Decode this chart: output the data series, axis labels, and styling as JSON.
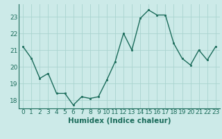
{
  "x": [
    0,
    1,
    2,
    3,
    4,
    5,
    6,
    7,
    8,
    9,
    10,
    11,
    12,
    13,
    14,
    15,
    16,
    17,
    18,
    19,
    20,
    21,
    22,
    23
  ],
  "y": [
    21.2,
    20.5,
    19.3,
    19.6,
    18.4,
    18.4,
    17.7,
    18.2,
    18.1,
    18.2,
    19.2,
    20.3,
    22.0,
    21.0,
    22.9,
    23.4,
    23.1,
    23.1,
    21.4,
    20.5,
    20.1,
    21.0,
    20.4,
    21.2
  ],
  "xlabel": "Humidex (Indice chaleur)",
  "ylim": [
    17.5,
    23.75
  ],
  "xlim": [
    -0.5,
    23.5
  ],
  "yticks": [
    18,
    19,
    20,
    21,
    22,
    23
  ],
  "xticks": [
    0,
    1,
    2,
    3,
    4,
    5,
    6,
    7,
    8,
    9,
    10,
    11,
    12,
    13,
    14,
    15,
    16,
    17,
    18,
    19,
    20,
    21,
    22,
    23
  ],
  "line_color": "#1a6b5a",
  "marker_color": "#1a6b5a",
  "bg_color": "#cceae8",
  "grid_color": "#aad4d0",
  "xlabel_color": "#1a6b5a",
  "tick_color": "#1a6b5a",
  "xlabel_fontsize": 7.5,
  "tick_fontsize": 6.5
}
